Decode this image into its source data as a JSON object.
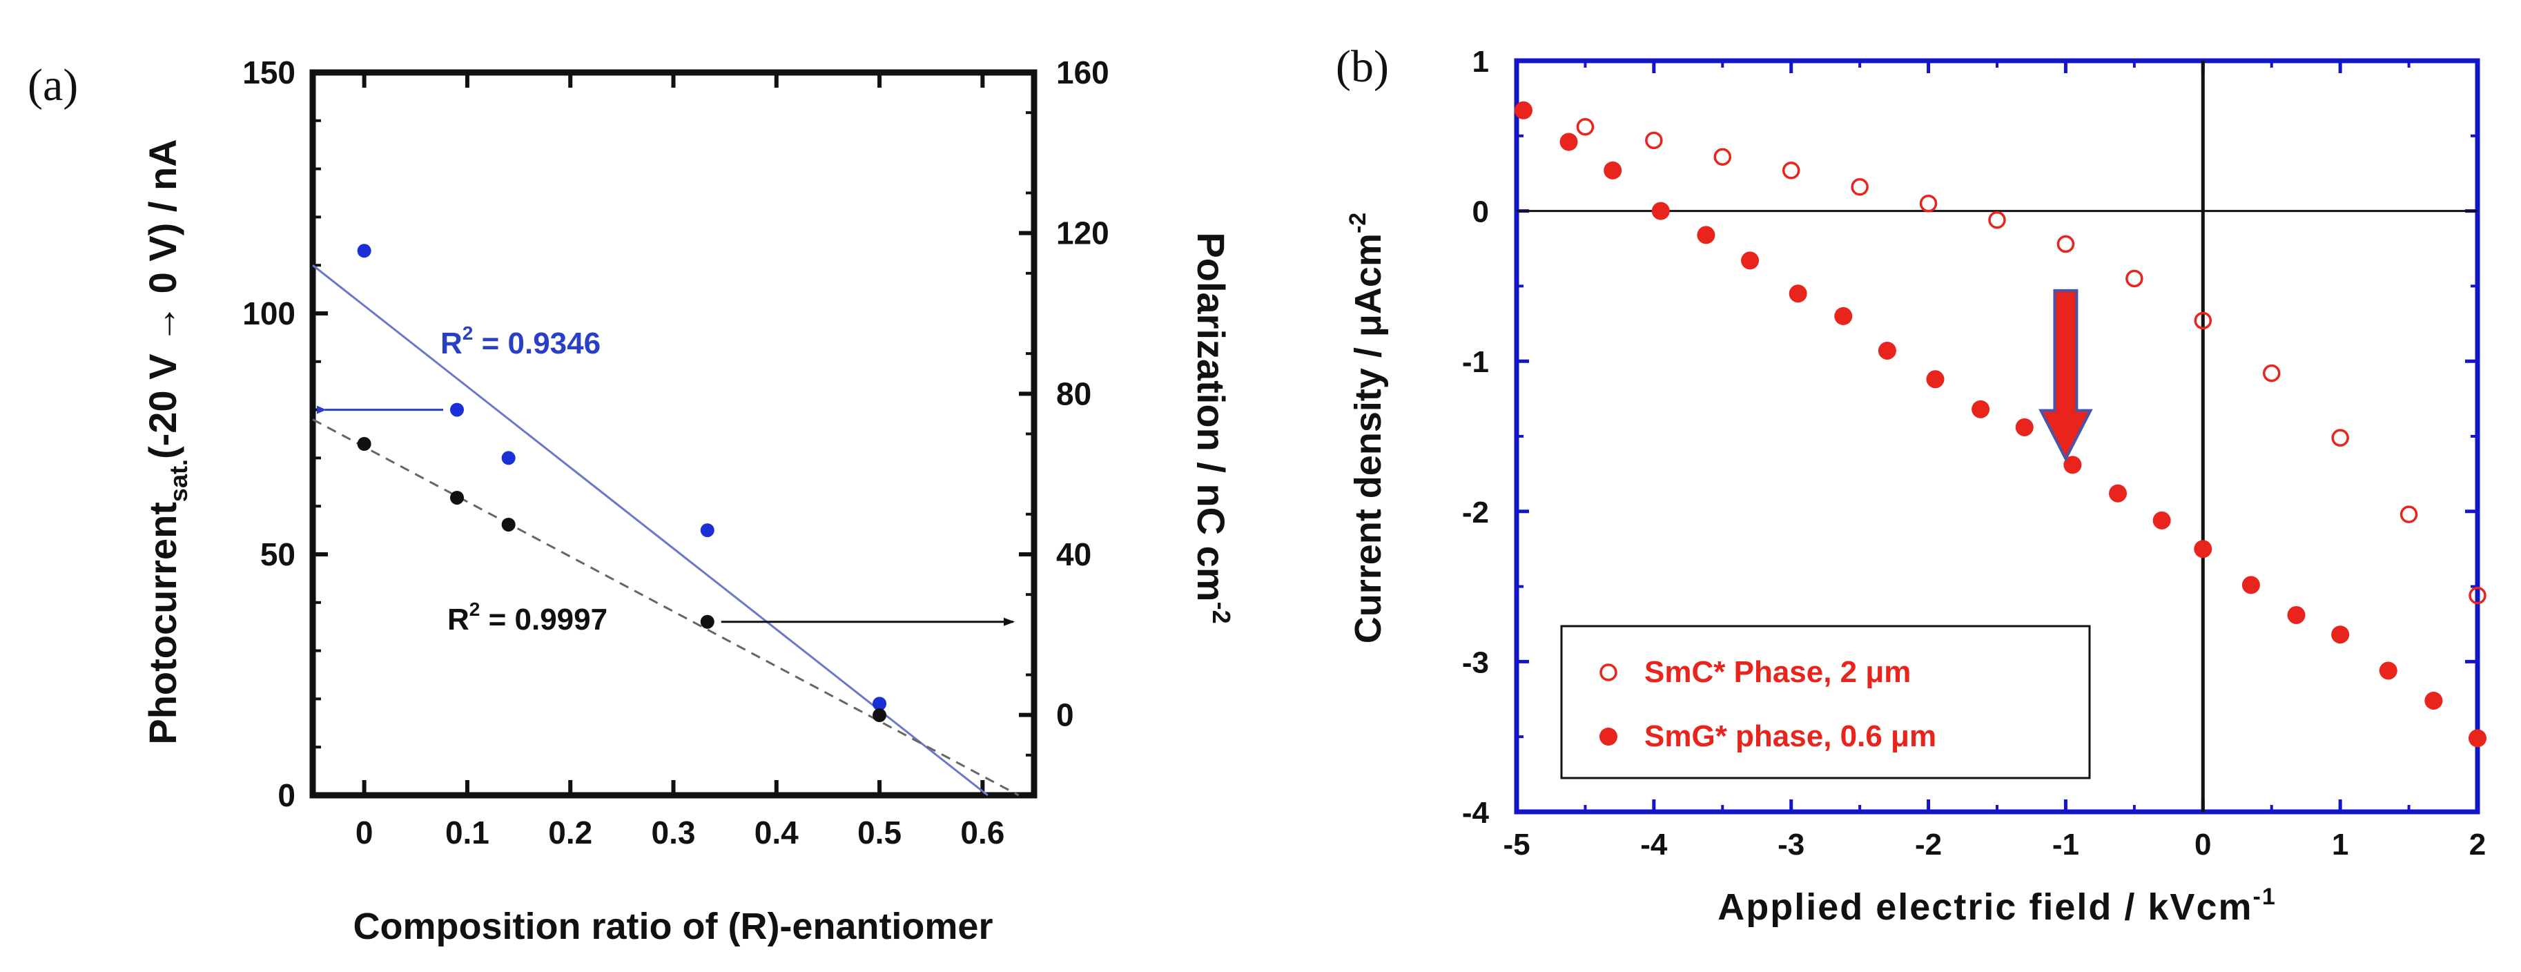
{
  "chart_data": [
    {
      "type": "scatter",
      "panel_label": "(a)",
      "xlabel": "Composition ratio of (R)-enantiomer",
      "ylabel_left": {
        "main": "Photocurrent",
        "sub": "sat.",
        "rest": "(-20 V → 0 V) / nA"
      },
      "ylabel_right": {
        "main": "Polarization / nC cm",
        "sup": "-2"
      },
      "xlim": [
        -0.05,
        0.65
      ],
      "ylim_left": [
        0,
        150
      ],
      "ylim_right": [
        -20,
        160
      ],
      "x_ticks": [
        "0",
        "0.1",
        "0.2",
        "0.3",
        "0.4",
        "0.5",
        "0.6"
      ],
      "y_ticks_left": [
        "0",
        "50",
        "100",
        "150"
      ],
      "y_ticks_right": [
        "0",
        "40",
        "80",
        "120",
        "160"
      ],
      "series": [
        {
          "name": "Photocurrent",
          "axis": "left",
          "color": "#1a2fd6",
          "x": [
            0,
            0.09,
            0.14,
            0.333,
            0.5
          ],
          "y": [
            113,
            80,
            70,
            55,
            19
          ],
          "fit": {
            "style": "solid",
            "color": "#6b78c8",
            "x": [
              -0.05,
              0.605
            ],
            "y": [
              110,
              0
            ]
          },
          "r2_prefix": "R",
          "r2_sup": "2",
          "r2_value": " = 0.9346"
        },
        {
          "name": "Polarization",
          "axis": "right",
          "color": "#111111",
          "x": [
            0,
            0.09,
            0.14,
            0.333,
            0.5
          ],
          "y": [
            67.5,
            54.1,
            47.4,
            23.2,
            -0.06
          ],
          "fit": {
            "style": "dashed",
            "color": "#666666",
            "x": [
              -0.05,
              0.635
            ],
            "y": [
              73.6,
              -20
            ]
          },
          "r2_prefix": "R",
          "r2_sup": "2",
          "r2_value": " = 0.9997"
        }
      ]
    },
    {
      "type": "scatter",
      "panel_label": "(b)",
      "xlabel": {
        "main": "Applied electric field / kVcm",
        "sup": "-1"
      },
      "ylabel": {
        "main": "Current density / μAcm",
        "sup": "-2"
      },
      "xlim": [
        -5,
        2
      ],
      "ylim": [
        -4,
        1
      ],
      "x_ticks": [
        "-5",
        "-4",
        "-3",
        "-2",
        "-1",
        "0",
        "1",
        "2"
      ],
      "y_ticks": [
        "-4",
        "-3",
        "-2",
        "-1",
        "0",
        "1"
      ],
      "legend": [
        "SmC* Phase, 2 μm",
        "SmG* phase, 0.6 μm"
      ],
      "legend_position": "bottom-left",
      "series": [
        {
          "name": "SmC* Phase, 2 μm",
          "marker": "open-circle",
          "color": "#e8241c",
          "x": [
            -4.95,
            -4.5,
            -4.0,
            -3.5,
            -3.0,
            -2.5,
            -2.0,
            -1.5,
            -1.0,
            -0.5,
            0.0,
            0.5,
            1.0,
            1.5,
            2.0
          ],
          "y": [
            0.67,
            0.56,
            0.47,
            0.36,
            0.27,
            0.16,
            0.05,
            -0.06,
            -0.22,
            -0.45,
            -0.73,
            -1.08,
            -1.51,
            -2.02,
            -2.56
          ]
        },
        {
          "name": "SmG* phase, 0.6 μm",
          "marker": "filled-circle",
          "color": "#e8241c",
          "x": [
            -4.95,
            -4.62,
            -4.3,
            -3.95,
            -3.62,
            -3.3,
            -2.95,
            -2.62,
            -2.3,
            -1.95,
            -1.62,
            -1.3,
            -0.95,
            -0.62,
            -0.3,
            0.0,
            0.35,
            0.68,
            1.0,
            1.35,
            1.68,
            2.0
          ],
          "y": [
            0.67,
            0.46,
            0.27,
            0.0,
            -0.16,
            -0.33,
            -0.55,
            -0.7,
            -0.93,
            -1.12,
            -1.32,
            -1.44,
            -1.69,
            -1.88,
            -2.06,
            -2.25,
            -2.49,
            -2.69,
            -2.82,
            -3.06,
            -3.26,
            -3.51
          ]
        }
      ],
      "annotation_arrow": {
        "x": -1.0,
        "y_from": -0.53,
        "y_to": -1.65,
        "color": "#e8241c"
      }
    }
  ]
}
